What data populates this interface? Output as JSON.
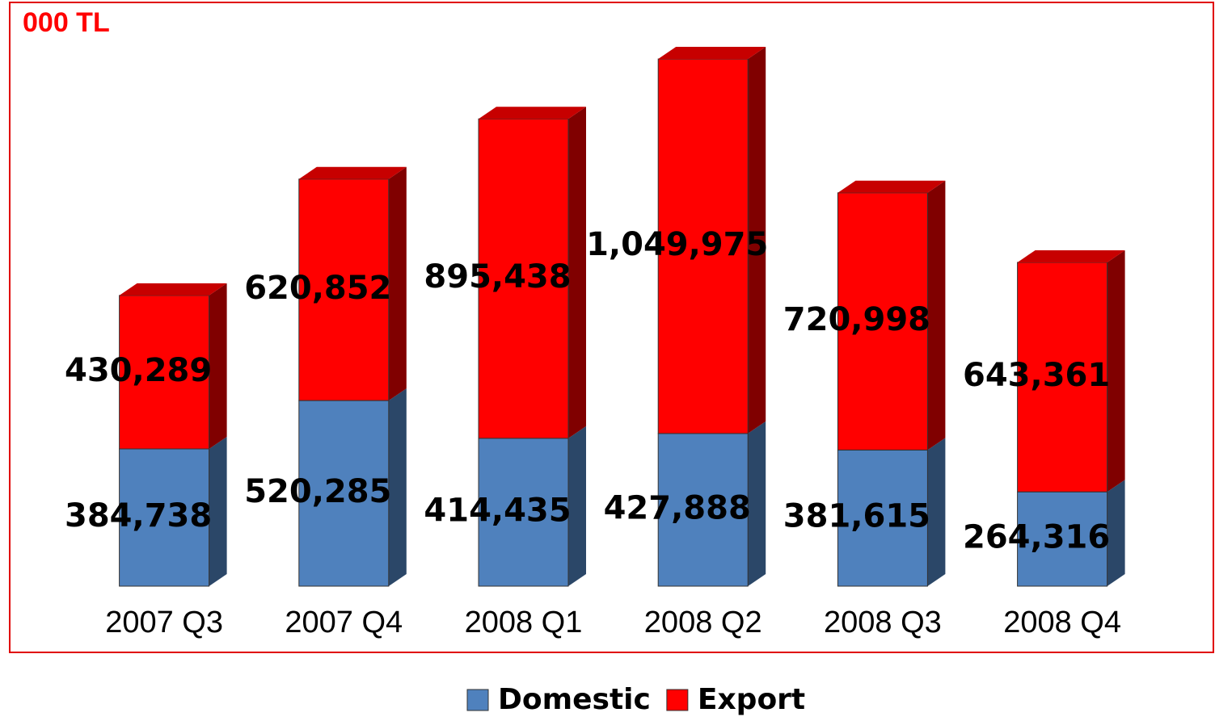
{
  "chart_data": {
    "type": "bar",
    "stacked": true,
    "title": "000 TL",
    "categories": [
      "2007 Q3",
      "2007 Q4",
      "2008 Q1",
      "2008 Q2",
      "2008 Q3",
      "2008 Q4"
    ],
    "series": [
      {
        "name": "Domestic",
        "color": "#4f81bd",
        "values": [
          384738,
          520285,
          414435,
          427888,
          381615,
          264316
        ],
        "value_labels": [
          "384,738",
          "520,285",
          "414,435",
          "427,888",
          "381,615",
          "264,316"
        ]
      },
      {
        "name": "Export",
        "color": "#ff0000",
        "values": [
          430289,
          620852,
          895438,
          1049975,
          720998,
          643361
        ],
        "value_labels": [
          "430,289",
          "620,852",
          "895,438",
          "1,049,975",
          "720,998",
          "643,361"
        ]
      }
    ],
    "legend": "bottom"
  }
}
